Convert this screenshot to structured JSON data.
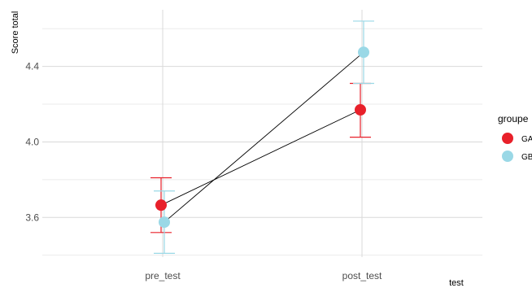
{
  "chart_data": {
    "type": "line",
    "title": "",
    "xlabel": "test",
    "ylabel": "Score total",
    "categories": [
      "pre_test",
      "post_test"
    ],
    "ylim": [
      3.39,
      4.7
    ],
    "yticks": [
      3.6,
      4.0,
      4.4
    ],
    "ytick_labels": [
      "3.6",
      "4.0",
      "4.4"
    ],
    "grid": true,
    "legend": {
      "title": "groupe",
      "placement": "right"
    },
    "series": [
      {
        "name": "GA",
        "color": "#e8202a",
        "values": [
          3.665,
          4.17
        ],
        "err_low": [
          3.52,
          4.025
        ],
        "err_high": [
          3.81,
          4.31
        ]
      },
      {
        "name": "GB",
        "color": "#9ad8e6",
        "values": [
          3.575,
          4.475
        ],
        "err_low": [
          3.41,
          4.31
        ],
        "err_high": [
          3.74,
          4.64
        ]
      }
    ]
  }
}
